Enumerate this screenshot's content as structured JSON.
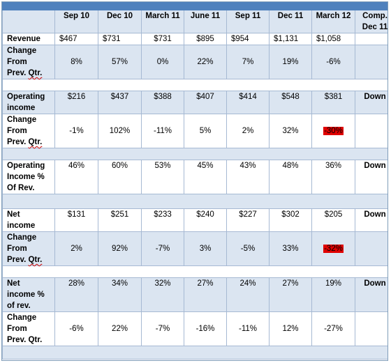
{
  "header": {
    "columns": [
      "Sep 10",
      "Dec 10",
      "March 11",
      "June 11",
      "Sep 11",
      "Dec 11",
      "March 12",
      "Comp. Dec 11"
    ]
  },
  "rows": {
    "revenue": {
      "label": "Revenue",
      "values": [
        "$467",
        "$731",
        "$731",
        "$895",
        "$954",
        "$1,131",
        "$1,058"
      ],
      "comp": ""
    },
    "revenue_change": {
      "label_parts": [
        "Change",
        "From",
        "Prev. ",
        "Qtr."
      ],
      "values": [
        "8%",
        "57%",
        "0%",
        "22%",
        "7%",
        "19%",
        "-6%"
      ],
      "comp": ""
    },
    "op_income": {
      "label_parts": [
        "Operating",
        "income"
      ],
      "values": [
        "$216",
        "$437",
        "$388",
        "$407",
        "$414",
        "$548",
        "$381"
      ],
      "comp": "Down"
    },
    "op_income_change": {
      "label_parts": [
        "Change",
        "From",
        "Prev. ",
        "Qtr."
      ],
      "values": [
        "-1%",
        "102%",
        "-11%",
        "5%",
        "2%",
        "32%",
        "-30%"
      ],
      "comp": ""
    },
    "op_income_pct": {
      "label_parts": [
        "Operating",
        "Income %",
        "Of Rev."
      ],
      "values": [
        "46%",
        "60%",
        "53%",
        "45%",
        "43%",
        "48%",
        "36%"
      ],
      "comp": "Down"
    },
    "net_income": {
      "label_parts": [
        "Net",
        "income"
      ],
      "values": [
        "$131",
        "$251",
        "$233",
        "$240",
        "$227",
        "$302",
        "$205"
      ],
      "comp": "Down"
    },
    "net_income_change": {
      "label_parts": [
        "Change",
        "From",
        "Prev. ",
        "Qtr."
      ],
      "values": [
        "2%",
        "92%",
        "-7%",
        "3%",
        "-5%",
        "33%",
        "-32%"
      ],
      "comp": ""
    },
    "net_income_pct": {
      "label_parts": [
        "Net",
        "income %",
        "of rev."
      ],
      "values": [
        "28%",
        "34%",
        "32%",
        "27%",
        "24%",
        "27%",
        "19%"
      ],
      "comp": "Down"
    },
    "net_income_change2": {
      "label_parts": [
        "Change",
        "From",
        "Prev. Qtr."
      ],
      "values": [
        "-6%",
        "22%",
        "-7%",
        "-16%",
        "-11%",
        "12%",
        "-27%"
      ],
      "comp": ""
    }
  },
  "colors": {
    "header_bar": "#4f81bd",
    "band": "#dbe5f1",
    "highlight": "#e00000"
  }
}
